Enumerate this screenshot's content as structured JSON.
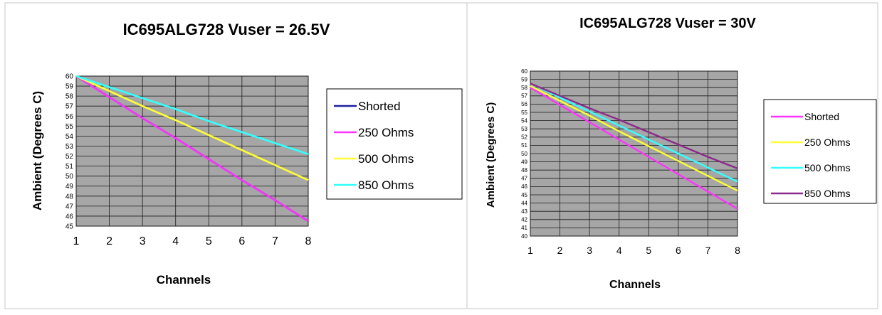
{
  "chart_data": [
    {
      "type": "line",
      "title": "IC695ALG728 Vuser = 26.5V",
      "xlabel": "Channels",
      "ylabel": "Ambient (Degrees C)",
      "x": [
        1,
        2,
        3,
        4,
        5,
        6,
        7,
        8
      ],
      "xlim": [
        1,
        8
      ],
      "ylim": [
        45,
        60
      ],
      "yticks": [
        45,
        46,
        47,
        48,
        49,
        50,
        51,
        52,
        53,
        54,
        55,
        56,
        57,
        58,
        59,
        60
      ],
      "grid": true,
      "legend": "right",
      "series": [
        {
          "name": "Shorted",
          "color": "#1f1fa0",
          "values": [
            60,
            57.9,
            55.8,
            53.8,
            51.7,
            49.6,
            47.6,
            45.5
          ]
        },
        {
          "name": "250 Ohms",
          "color": "#ff33ff",
          "values": [
            60,
            57.9,
            55.8,
            53.8,
            51.7,
            49.6,
            47.6,
            45.5
          ]
        },
        {
          "name": "500 Ohms",
          "color": "#ffff33",
          "values": [
            60,
            58.5,
            57.0,
            55.6,
            54.1,
            52.6,
            51.1,
            49.6
          ]
        },
        {
          "name": "850 Ohms",
          "color": "#33ffff",
          "values": [
            60,
            58.9,
            57.8,
            56.7,
            55.5,
            54.4,
            53.3,
            52.2
          ]
        }
      ]
    },
    {
      "type": "line",
      "title": "IC695ALG728 Vuser = 30V",
      "xlabel": "Channels",
      "ylabel": "Ambient (Degrees C)",
      "x": [
        1,
        2,
        3,
        4,
        5,
        6,
        7,
        8
      ],
      "xlim": [
        1,
        8
      ],
      "ylim": [
        40,
        60
      ],
      "yticks": [
        40,
        41,
        42,
        43,
        44,
        45,
        46,
        47,
        48,
        49,
        50,
        51,
        52,
        53,
        54,
        55,
        56,
        57,
        58,
        59,
        60
      ],
      "grid": true,
      "legend": "right",
      "series": [
        {
          "name": "Shorted",
          "color": "#ff33ff",
          "values": [
            58,
            55.9,
            53.8,
            51.7,
            49.6,
            47.5,
            45.4,
            43.3
          ]
        },
        {
          "name": "250 Ohms",
          "color": "#ffff33",
          "values": [
            58.2,
            56.4,
            54.6,
            52.7,
            50.9,
            49.1,
            47.3,
            45.5
          ]
        },
        {
          "name": "500 Ohms",
          "color": "#33ffff",
          "values": [
            58.5,
            56.8,
            55.1,
            53.4,
            51.7,
            50.0,
            48.3,
            46.6
          ]
        },
        {
          "name": "850 Ohms",
          "color": "#8b2a8b",
          "values": [
            58.5,
            57.0,
            55.5,
            54.1,
            52.6,
            51.1,
            49.6,
            48.2
          ]
        }
      ]
    }
  ]
}
